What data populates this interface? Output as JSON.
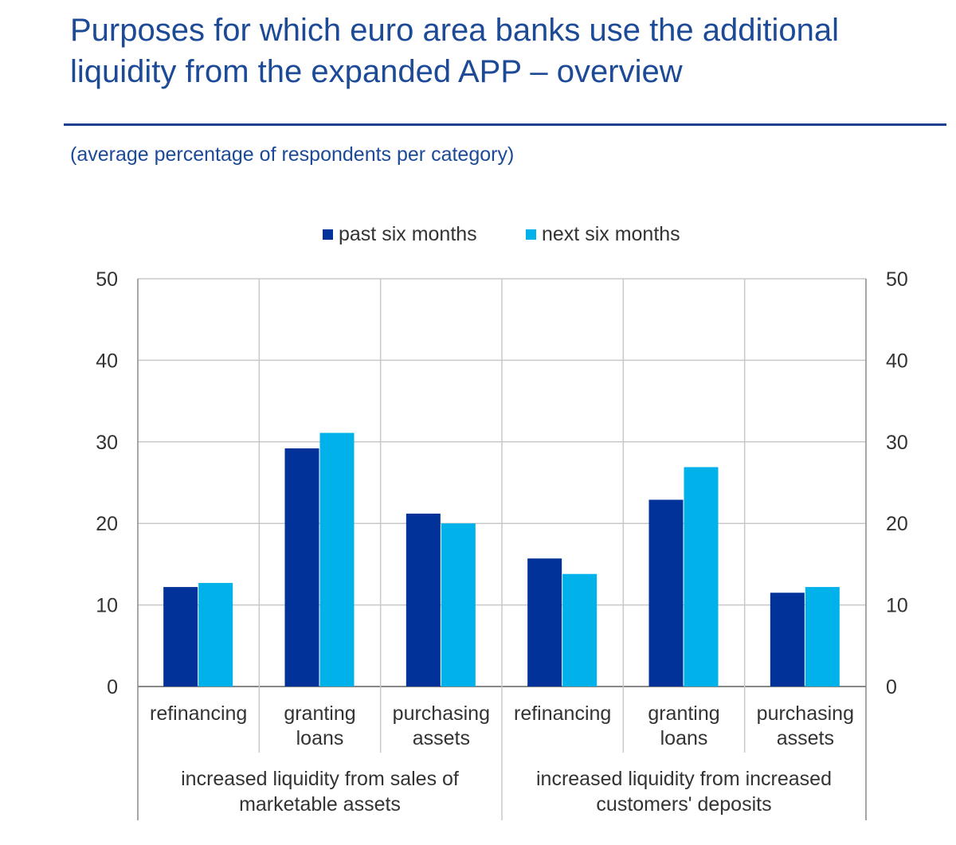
{
  "title": "Purposes for which euro area banks use the additional liquidity from the expanded APP – overview",
  "subtitle": "(average percentage of respondents per category)",
  "chart_data": {
    "type": "bar",
    "categories": [
      "refinancing",
      "granting loans",
      "purchasing assets",
      "refinancing",
      "granting loans",
      "purchasing assets"
    ],
    "groups": [
      {
        "label": "increased liquidity from sales of marketable assets",
        "categories": [
          0,
          1,
          2
        ]
      },
      {
        "label": "increased liquidity from increased customers' deposits",
        "categories": [
          3,
          4,
          5
        ]
      }
    ],
    "series": [
      {
        "name": "past six months",
        "color": "#003299",
        "values": [
          12.2,
          29.2,
          21.2,
          15.7,
          22.9,
          11.5
        ]
      },
      {
        "name": "next six months",
        "color": "#00b1ea",
        "values": [
          12.7,
          31.1,
          20.0,
          13.8,
          26.9,
          12.2
        ]
      }
    ],
    "ylim": [
      0,
      50
    ],
    "yticks": [
      0,
      10,
      20,
      30,
      40,
      50
    ],
    "secondary_y_axis": true,
    "grid": true,
    "legend": "top-center"
  }
}
